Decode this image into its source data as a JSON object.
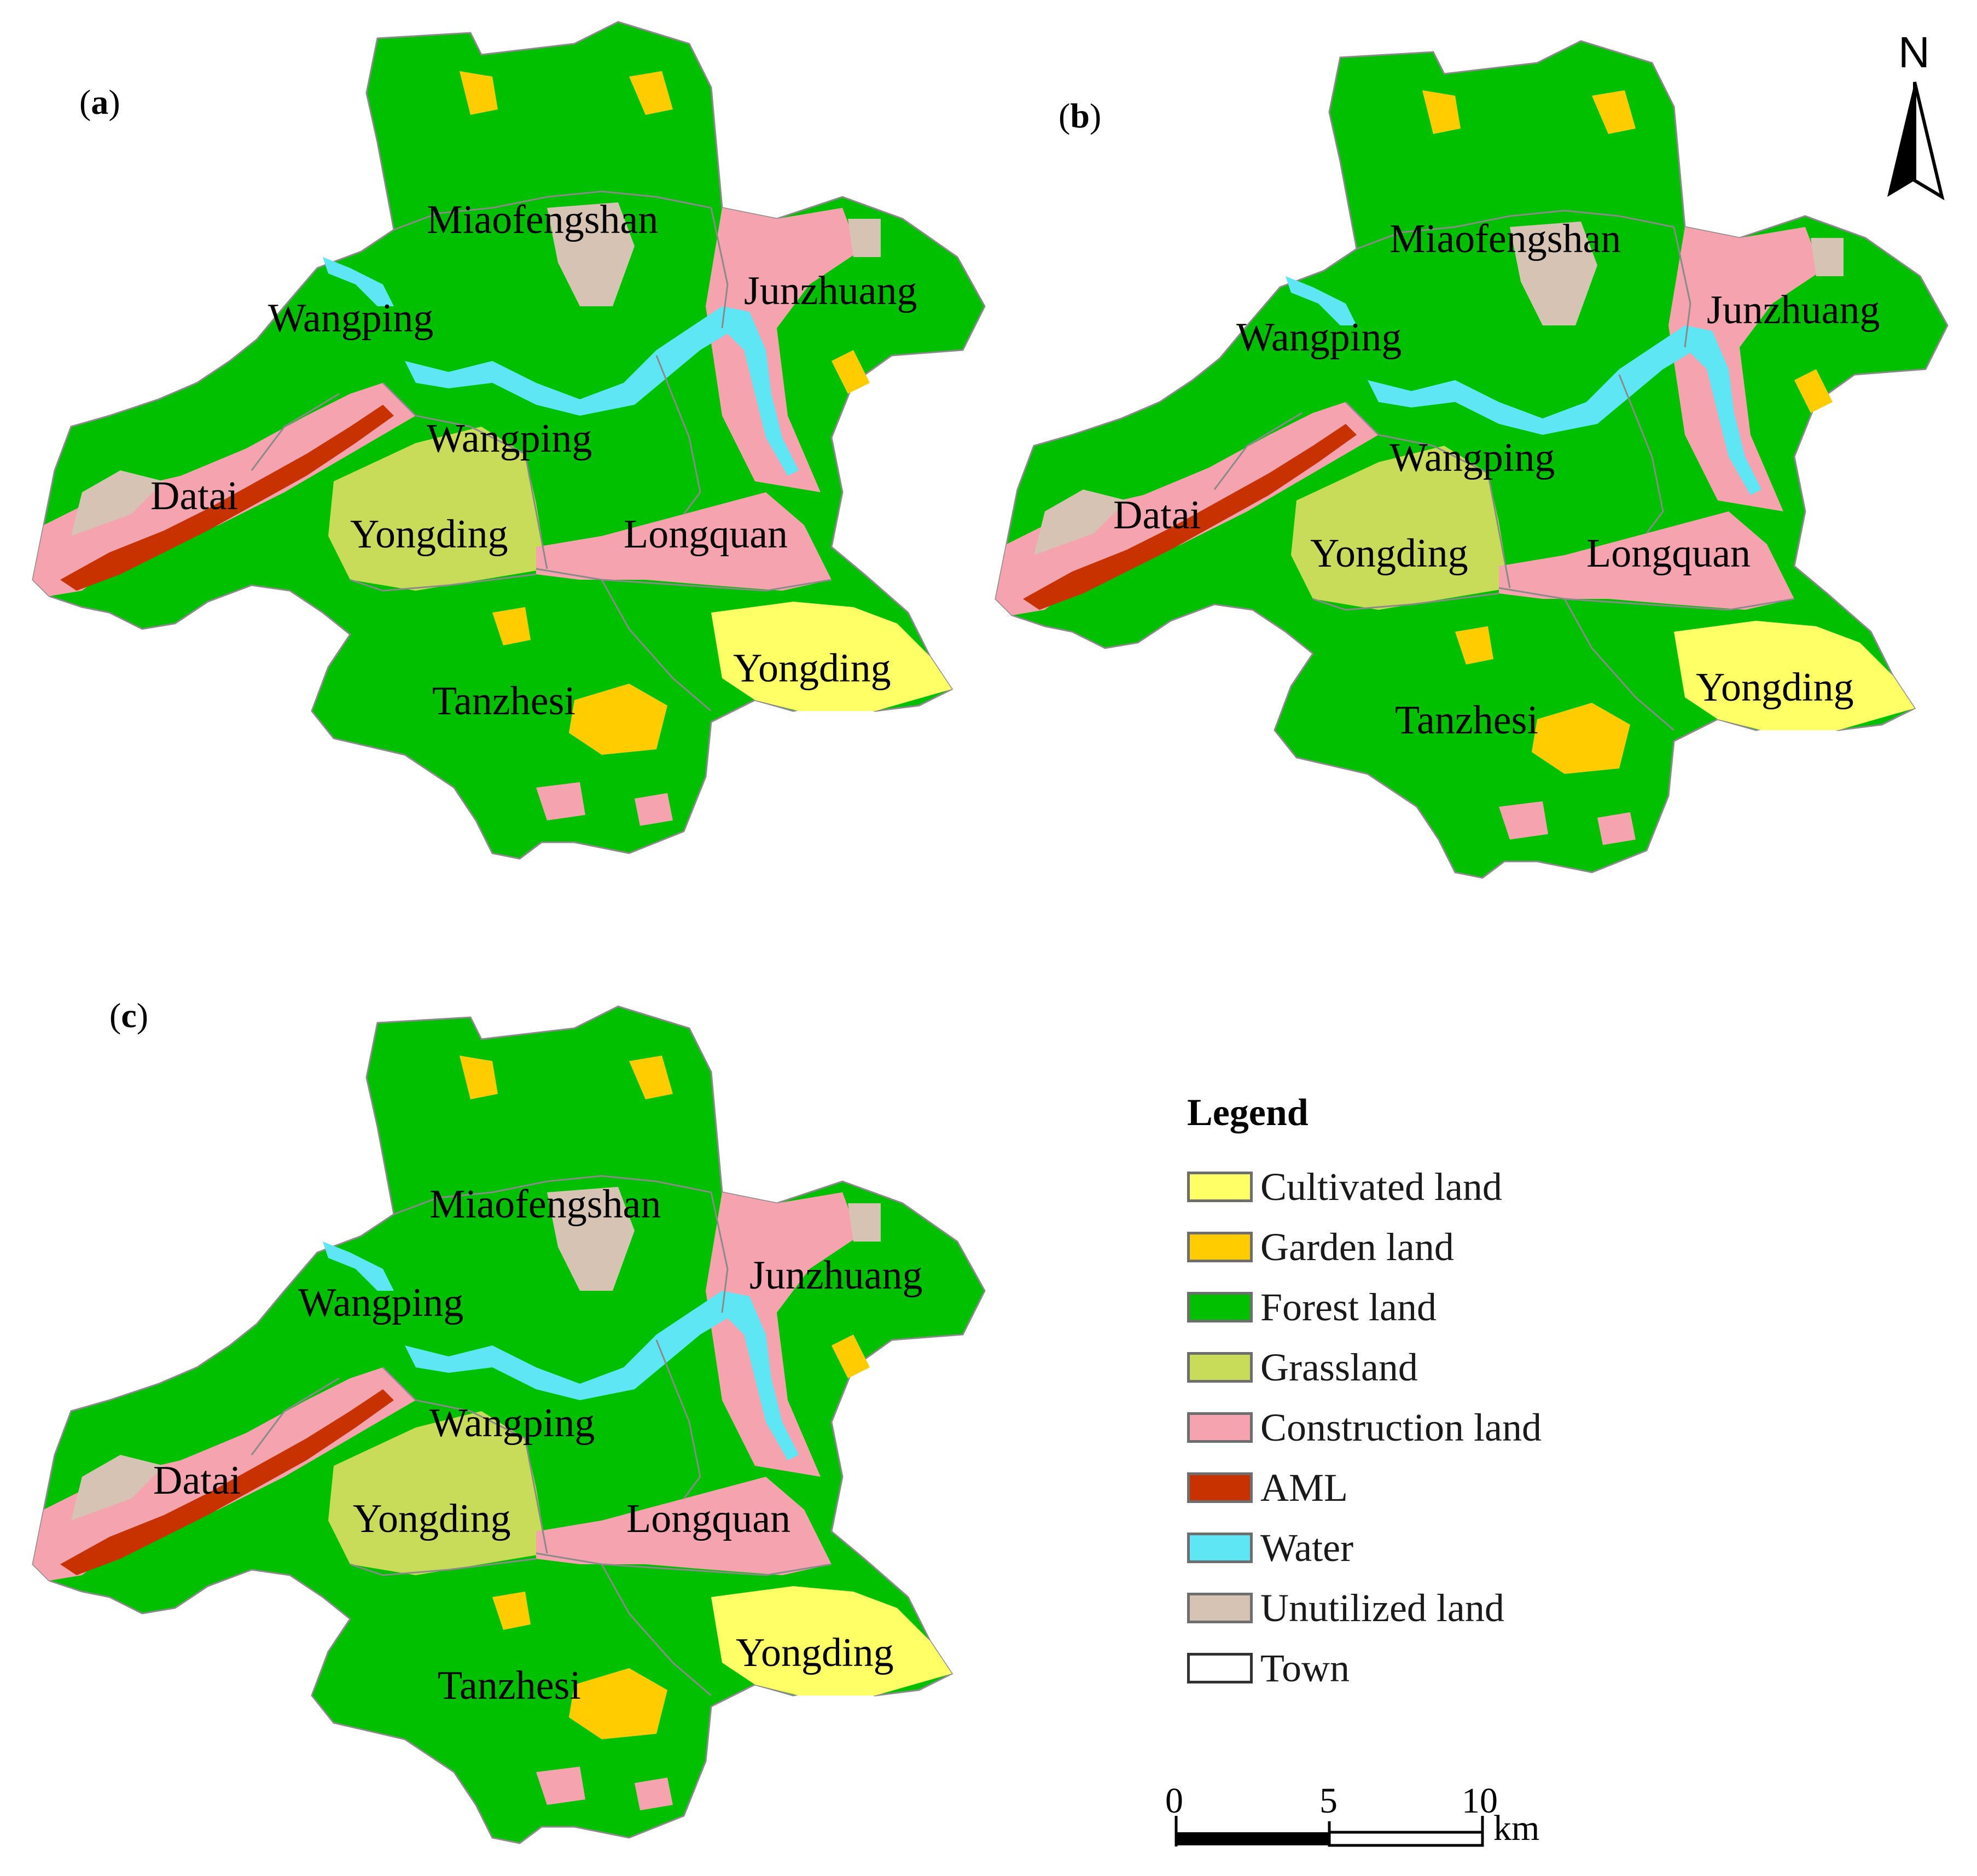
{
  "panels": [
    {
      "letter": "a",
      "towns": [
        "Miaofengshan",
        "Junzhuang",
        "Wangping",
        "Wangping",
        "Datai",
        "Yongding",
        "Longquan",
        "Yongding",
        "Tanzhesi"
      ]
    },
    {
      "letter": "b",
      "towns": [
        "Miaofengshan",
        "Junzhuang",
        "Wangping",
        "Wangping",
        "Datai",
        "Yongding",
        "Longquan",
        "Yongding",
        "Tanzhesi"
      ]
    },
    {
      "letter": "c",
      "towns": [
        "Miaofengshan",
        "Junzhuang",
        "Wangping",
        "Wangping",
        "Datai",
        "Yongding",
        "Longquan",
        "Yongding",
        "Tanzhesi"
      ]
    }
  ],
  "north_arrow": {
    "label": "N",
    "icon": "north-arrow-icon"
  },
  "legend": {
    "title": "Legend",
    "items": [
      {
        "label": "Cultivated land",
        "color": "#ffff66"
      },
      {
        "label": "Garden land",
        "color": "#ffcc00"
      },
      {
        "label": "Forest land",
        "color": "#00c000"
      },
      {
        "label": "Grassland",
        "color": "#c8dc5a"
      },
      {
        "label": "Construction land",
        "color": "#f5a3ae"
      },
      {
        "label": "AML",
        "color": "#c83200"
      },
      {
        "label": "Water",
        "color": "#5ee6f5"
      },
      {
        "label": "Unutilized land",
        "color": "#d7c3b4"
      },
      {
        "label": "Town",
        "color": "#ffffff"
      }
    ]
  },
  "scale_bar": {
    "ticks": [
      "0",
      "5",
      "10"
    ],
    "unit": "km"
  }
}
